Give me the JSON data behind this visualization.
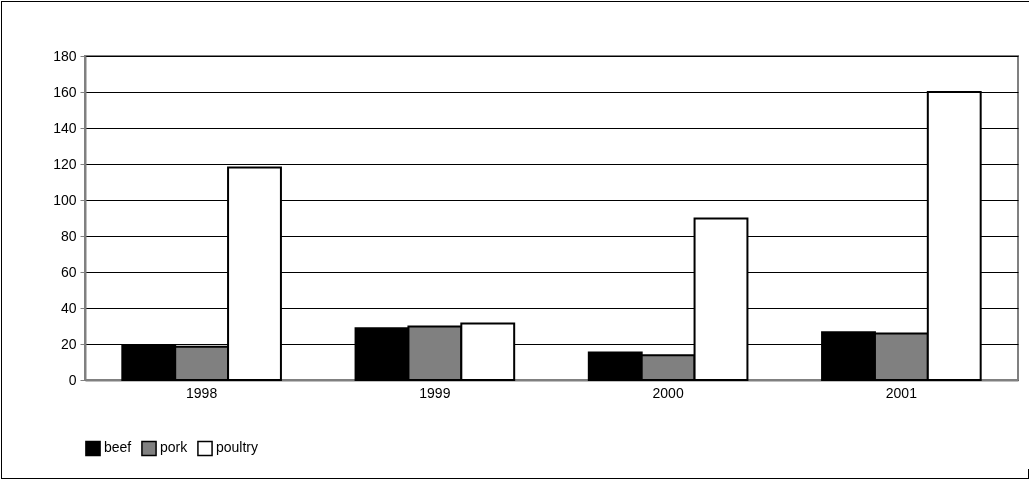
{
  "chart_data": {
    "type": "bar",
    "categories": [
      "1998",
      "1999",
      "2000",
      "2001"
    ],
    "series": [
      {
        "name": "beef",
        "color": "#000000",
        "values": [
          19.4,
          28.8,
          15.3,
          26.5
        ]
      },
      {
        "name": "pork",
        "color": "#808080",
        "values": [
          18.5,
          29.7,
          13.8,
          25.8
        ]
      },
      {
        "name": "poultry",
        "color": "#ffffff",
        "values": [
          118,
          31.4,
          89.7,
          160
        ]
      }
    ],
    "ylim": [
      0,
      180
    ],
    "yticks": [
      0,
      20,
      40,
      60,
      80,
      100,
      120,
      140,
      160,
      180
    ],
    "grid": "y",
    "legend": "bottom"
  }
}
